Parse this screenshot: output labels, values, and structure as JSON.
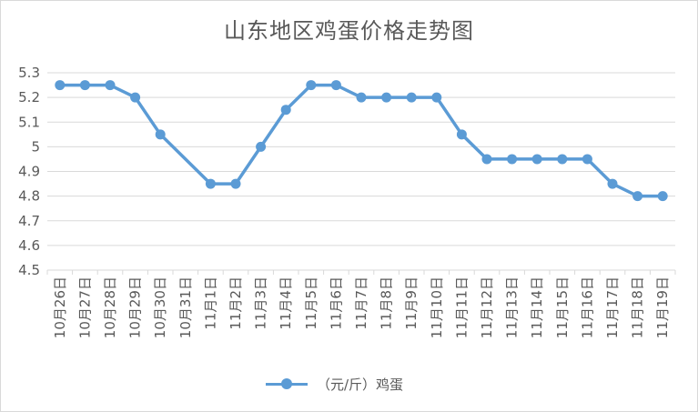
{
  "chart_data": {
    "type": "line",
    "title": "山东地区鸡蛋价格走势图",
    "categories": [
      "10月26日",
      "10月27日",
      "10月28日",
      "10月29日",
      "10月30日",
      "10月31日",
      "11月1日",
      "11月2日",
      "11月3日",
      "11月4日",
      "11月5日",
      "11月6日",
      "11月7日",
      "11月8日",
      "11月9日",
      "11月10日",
      "11月11日",
      "11月12日",
      "11月13日",
      "11月14日",
      "11月15日",
      "11月16日",
      "11月17日",
      "11月18日",
      "11月19日"
    ],
    "series": [
      {
        "name": "（元/斤）鸡蛋",
        "values": [
          5.25,
          5.25,
          5.25,
          5.2,
          5.05,
          null,
          4.85,
          4.85,
          5.0,
          5.15,
          5.25,
          5.25,
          5.2,
          5.2,
          5.2,
          5.2,
          5.05,
          4.95,
          4.95,
          4.95,
          4.95,
          4.95,
          4.85,
          4.8,
          4.8
        ],
        "color": "#5b9bd5"
      }
    ],
    "y_ticks": [
      "4.5",
      "4.6",
      "4.7",
      "4.8",
      "4.9",
      "5",
      "5.1",
      "5.2",
      "5.3"
    ],
    "ylim": [
      4.5,
      5.3
    ],
    "grid": true,
    "legend_position": "bottom"
  }
}
